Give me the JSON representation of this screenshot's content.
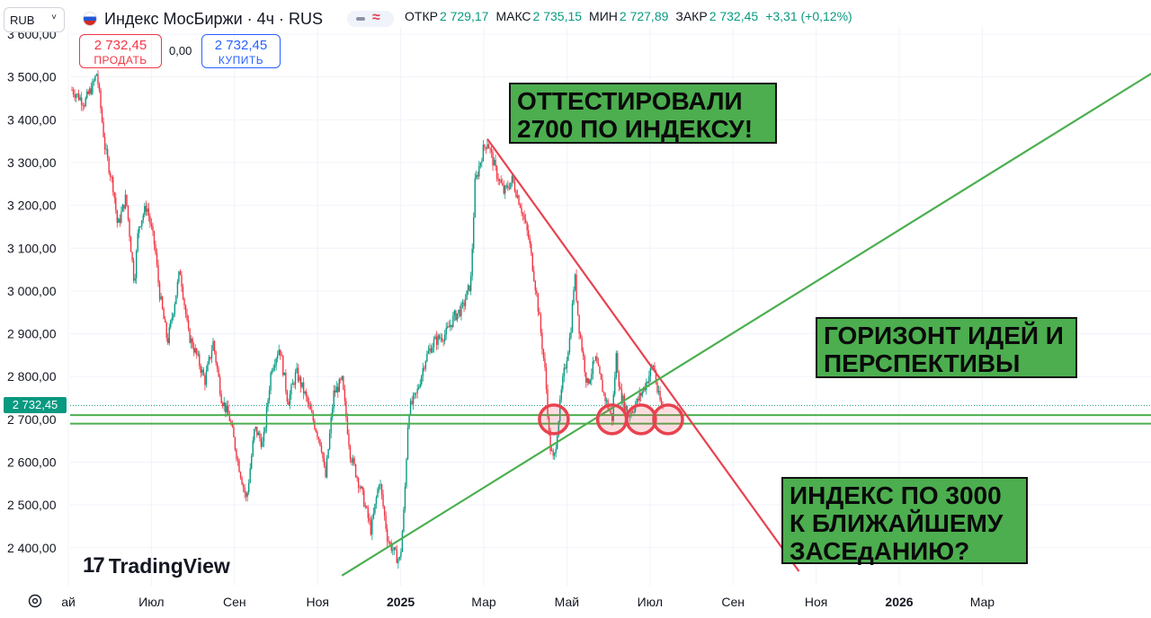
{
  "header": {
    "currency": "RUB",
    "title": "Индекс МосБиржи · 4ч · RUS",
    "ohlc": [
      {
        "label": "ОТКР",
        "value": "2 729,17"
      },
      {
        "label": "МАКС",
        "value": "2 735,15"
      },
      {
        "label": "МИН",
        "value": "2 727,89"
      },
      {
        "label": "ЗАКР",
        "value": "2 732,45"
      },
      {
        "label": "",
        "value": "+3,31 (+0,12%)"
      }
    ]
  },
  "trade": {
    "sell_price": "2 732,45",
    "sell_label": "ПРОДАТЬ",
    "spread": "0,00",
    "buy_price": "2 732,45",
    "buy_label": "КУПИТЬ"
  },
  "price_tag": "2 732,45",
  "annotations": {
    "note1": "ОТТЕСТИРОВАЛИ\n2700 ПО ИНДЕКСУ!",
    "note2": "ГОРИЗОНТ ИДЕЙ И\nПЕРСПЕКТИВЫ",
    "note3": "ИНДЕКС ПО 3000\nК БЛИЖАЙШЕМУ\nЗАСЕдАНИЮ?"
  },
  "branding": "TradingView",
  "colors": {
    "up": "#089981",
    "down": "#f23645",
    "support": "#4caf50",
    "resistance": "#e8424f",
    "circle": "#e8424f"
  },
  "chart_data": {
    "type": "candlestick",
    "title": "Индекс МосБиржи · 4ч · RUS",
    "ylim": [
      2335,
      3620
    ],
    "y_ticks": [
      "2 400,00",
      "2 500,00",
      "2 600,00",
      "2 700,00",
      "2 800,00",
      "2 900,00",
      "3 000,00",
      "3 100,00",
      "3 200,00",
      "3 300,00",
      "3 400,00",
      "3 500,00",
      "3 600,00"
    ],
    "y_tick_values": [
      2400,
      2500,
      2600,
      2700,
      2800,
      2900,
      3000,
      3100,
      3200,
      3300,
      3400,
      3500,
      3600
    ],
    "x_ticks": [
      {
        "label": "ай",
        "x": 0,
        "bold": false
      },
      {
        "label": "Июл",
        "x": 2,
        "bold": false
      },
      {
        "label": "Сен",
        "x": 4,
        "bold": false
      },
      {
        "label": "Ноя",
        "x": 6,
        "bold": false
      },
      {
        "label": "2025",
        "x": 8,
        "bold": true
      },
      {
        "label": "Мар",
        "x": 10,
        "bold": false
      },
      {
        "label": "Май",
        "x": 12,
        "bold": false
      },
      {
        "label": "Июл",
        "x": 14,
        "bold": false
      },
      {
        "label": "Сен",
        "x": 16,
        "bold": false
      },
      {
        "label": "Ноя",
        "x": 18,
        "bold": false
      },
      {
        "label": "2026",
        "x": 20,
        "bold": true
      },
      {
        "label": "Мар",
        "x": 22,
        "bold": false
      }
    ],
    "price_path": [
      [
        0.0,
        3470
      ],
      [
        0.3,
        3440
      ],
      [
        0.5,
        3480
      ],
      [
        0.6,
        3510
      ],
      [
        0.8,
        3330
      ],
      [
        1.0,
        3240
      ],
      [
        1.1,
        3150
      ],
      [
        1.3,
        3220
      ],
      [
        1.5,
        3020
      ],
      [
        1.6,
        3150
      ],
      [
        1.8,
        3200
      ],
      [
        2.0,
        3100
      ],
      [
        2.1,
        3000
      ],
      [
        2.3,
        2880
      ],
      [
        2.5,
        2990
      ],
      [
        2.6,
        3050
      ],
      [
        2.8,
        2900
      ],
      [
        3.0,
        2850
      ],
      [
        3.2,
        2790
      ],
      [
        3.4,
        2880
      ],
      [
        3.6,
        2750
      ],
      [
        3.8,
        2700
      ],
      [
        4.0,
        2600
      ],
      [
        4.2,
        2510
      ],
      [
        4.4,
        2680
      ],
      [
        4.6,
        2640
      ],
      [
        4.8,
        2820
      ],
      [
        5.0,
        2870
      ],
      [
        5.2,
        2740
      ],
      [
        5.4,
        2810
      ],
      [
        5.6,
        2760
      ],
      [
        5.8,
        2700
      ],
      [
        6.0,
        2640
      ],
      [
        6.1,
        2560
      ],
      [
        6.3,
        2760
      ],
      [
        6.5,
        2790
      ],
      [
        6.7,
        2620
      ],
      [
        7.0,
        2520
      ],
      [
        7.2,
        2440
      ],
      [
        7.4,
        2560
      ],
      [
        7.6,
        2420
      ],
      [
        7.8,
        2380
      ],
      [
        7.9,
        2370
      ],
      [
        8.0,
        2500
      ],
      [
        8.1,
        2720
      ],
      [
        8.3,
        2760
      ],
      [
        8.5,
        2840
      ],
      [
        8.7,
        2880
      ],
      [
        9.0,
        2900
      ],
      [
        9.2,
        2940
      ],
      [
        9.4,
        2960
      ],
      [
        9.6,
        3020
      ],
      [
        9.7,
        3250
      ],
      [
        9.9,
        3330
      ],
      [
        10.0,
        3350
      ],
      [
        10.2,
        3280
      ],
      [
        10.4,
        3230
      ],
      [
        10.6,
        3260
      ],
      [
        10.8,
        3200
      ],
      [
        11.0,
        3120
      ],
      [
        11.2,
        2980
      ],
      [
        11.4,
        2800
      ],
      [
        11.5,
        2640
      ],
      [
        11.6,
        2600
      ],
      [
        11.8,
        2780
      ],
      [
        12.0,
        2900
      ],
      [
        12.1,
        3040
      ],
      [
        12.2,
        2920
      ],
      [
        12.4,
        2780
      ],
      [
        12.6,
        2840
      ],
      [
        12.8,
        2760
      ],
      [
        13.0,
        2700
      ],
      [
        13.1,
        2850
      ],
      [
        13.2,
        2760
      ],
      [
        13.4,
        2710
      ],
      [
        13.6,
        2740
      ],
      [
        13.8,
        2780
      ],
      [
        14.0,
        2830
      ],
      [
        14.1,
        2760
      ],
      [
        14.2,
        2729
      ],
      [
        14.25,
        2732
      ]
    ],
    "trendlines": [
      {
        "kind": "resistance",
        "from": [
          10.0,
          3355
        ],
        "to": [
          17.5,
          2345
        ]
      },
      {
        "kind": "support",
        "from": [
          6.5,
          2335
        ],
        "to": [
          26.6,
          3545
        ]
      }
    ],
    "horizontal_levels": [
      2710,
      2690
    ],
    "current_price": 2732.45,
    "circles": [
      {
        "x": 11.6,
        "y": 2700
      },
      {
        "x": 13.0,
        "y": 2700
      },
      {
        "x": 13.7,
        "y": 2700
      },
      {
        "x": 14.35,
        "y": 2700
      }
    ]
  }
}
